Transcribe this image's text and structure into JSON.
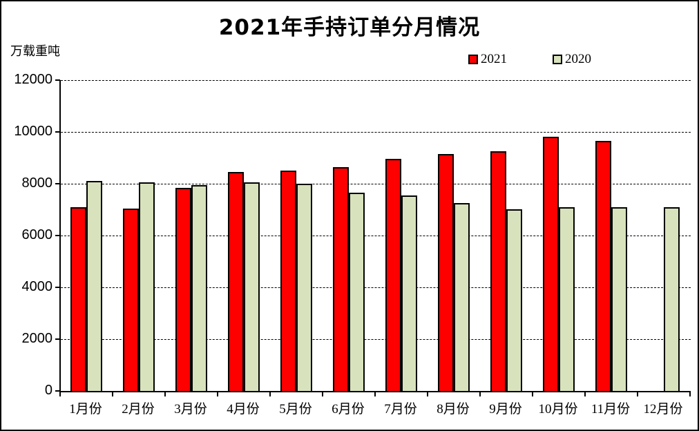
{
  "window": {
    "background": "#FFFFFF",
    "frame_border_color": "#000000"
  },
  "chart_data": {
    "type": "bar",
    "title": "2021年手持订单分月情况",
    "ylabel": "万载重吨",
    "xlabel": "",
    "categories": [
      "1月份",
      "2月份",
      "3月份",
      "4月份",
      "5月份",
      "6月份",
      "7月份",
      "8月份",
      "9月份",
      "10月份",
      "11月份",
      "12月份"
    ],
    "series": [
      {
        "name": "2021",
        "color": "#FF0000",
        "values": [
          7100,
          7050,
          7850,
          8450,
          8500,
          8650,
          8950,
          9150,
          9250,
          9800,
          9650,
          null
        ]
      },
      {
        "name": "2020",
        "color": "#D8E2BC",
        "values": [
          8100,
          8050,
          7950,
          8050,
          8000,
          7650,
          7550,
          7250,
          7000,
          7100,
          7100,
          7100
        ]
      }
    ],
    "ylim": [
      0,
      12000
    ],
    "yticks": [
      0,
      2000,
      4000,
      6000,
      8000,
      10000,
      12000
    ],
    "grid": "horizontal-dashed",
    "gridline_color": "#000000",
    "bar_outline_color": "#000000",
    "legend_position": "top-right"
  }
}
